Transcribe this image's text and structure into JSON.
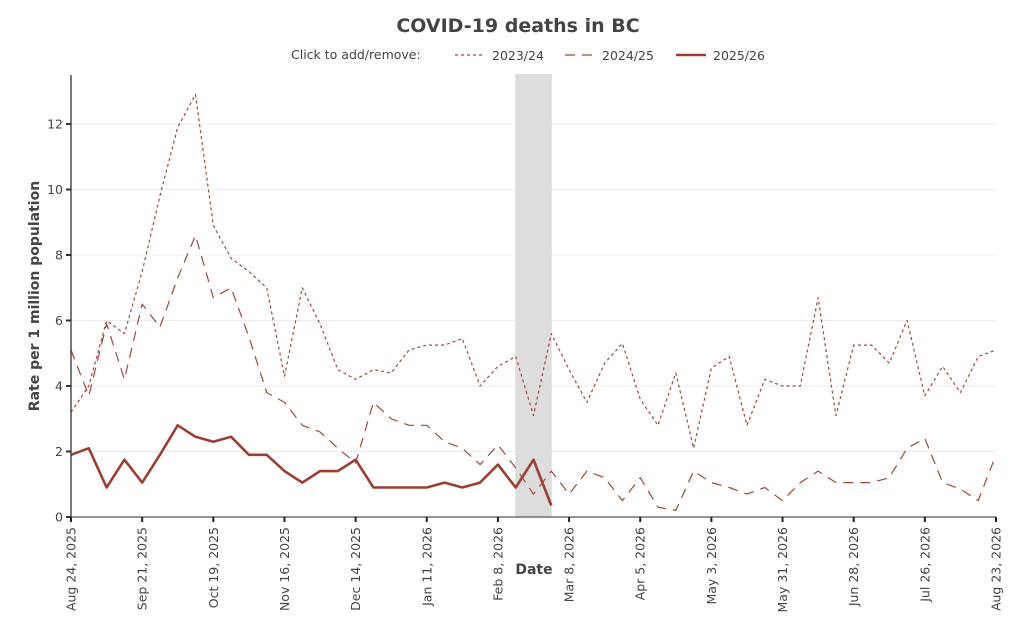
{
  "chart_data": {
    "type": "line",
    "title": "COVID-19 deaths in BC",
    "xlabel": "Date",
    "ylabel": "Rate per 1 million population",
    "ylim": [
      0,
      13.5
    ],
    "yticks": [
      0,
      2,
      4,
      6,
      8,
      10,
      12
    ],
    "xlim_weeks": [
      0,
      52
    ],
    "xticks": [
      {
        "week": 0,
        "label": "Aug 24, 2025"
      },
      {
        "week": 4,
        "label": "Sep 21, 2025"
      },
      {
        "week": 8,
        "label": "Oct 19, 2025"
      },
      {
        "week": 12,
        "label": "Nov 16, 2025"
      },
      {
        "week": 16,
        "label": "Dec 14, 2025"
      },
      {
        "week": 20,
        "label": "Jan 11, 2026"
      },
      {
        "week": 24,
        "label": "Feb 8, 2026"
      },
      {
        "week": 28,
        "label": "Mar 8, 2026"
      },
      {
        "week": 32,
        "label": "Apr 5, 2026"
      },
      {
        "week": 36,
        "label": "May 3, 2026"
      },
      {
        "week": 40,
        "label": "May 31, 2026"
      },
      {
        "week": 44,
        "label": "Jun 28, 2026"
      },
      {
        "week": 48,
        "label": "Jul 26, 2026"
      },
      {
        "week": 52,
        "label": "Aug 23, 2026"
      }
    ],
    "x_unit": "weeks since Aug 24, 2025",
    "grid": true,
    "shaded_region_weeks": [
      25,
      27
    ],
    "legend": {
      "prompt": "Click to add/remove:",
      "placement": "top-center"
    },
    "series": [
      {
        "name": "2023/24",
        "style": "dotted",
        "color": "#a0473d",
        "values": [
          3.2,
          4.0,
          6.0,
          5.6,
          7.5,
          9.8,
          11.9,
          12.9,
          8.9,
          7.9,
          7.5,
          7.0,
          4.3,
          7.0,
          5.9,
          4.5,
          4.2,
          4.5,
          4.4,
          5.1,
          5.25,
          5.25,
          5.45,
          4.0,
          4.6,
          4.9,
          3.1,
          5.6,
          4.5,
          3.5,
          4.7,
          5.3,
          3.6,
          2.8,
          4.4,
          2.1,
          4.55,
          4.9,
          2.8,
          4.2,
          4.0,
          4.0,
          6.7,
          3.1,
          5.25,
          5.25,
          4.7,
          6.0,
          3.7,
          4.6,
          3.8,
          4.9,
          5.1
        ]
      },
      {
        "name": "2024/25",
        "style": "dashed",
        "color": "#a0473d",
        "values": [
          5.1,
          3.7,
          5.9,
          4.2,
          6.5,
          5.8,
          7.3,
          8.6,
          6.7,
          7.0,
          5.5,
          3.8,
          3.5,
          2.8,
          2.6,
          2.1,
          1.65,
          3.5,
          3.0,
          2.8,
          2.8,
          2.3,
          2.1,
          1.6,
          2.2,
          1.5,
          0.7,
          1.4,
          0.7,
          1.4,
          1.2,
          0.5,
          1.2,
          0.3,
          0.2,
          1.4,
          1.05,
          0.9,
          0.7,
          0.9,
          0.5,
          1.05,
          1.4,
          1.05,
          1.05,
          1.05,
          1.2,
          2.1,
          2.4,
          1.05,
          0.85,
          0.5,
          1.9
        ]
      },
      {
        "name": "2025/26",
        "style": "solid",
        "color": "#9b3f35",
        "values": [
          1.9,
          2.1,
          0.9,
          1.75,
          1.05,
          1.9,
          2.8,
          2.45,
          2.3,
          2.45,
          1.9,
          1.9,
          1.4,
          1.05,
          1.4,
          1.4,
          1.75,
          0.9,
          0.9,
          0.9,
          0.9,
          1.05,
          0.9,
          1.05,
          1.6,
          0.9,
          1.75,
          0.35
        ]
      }
    ]
  }
}
